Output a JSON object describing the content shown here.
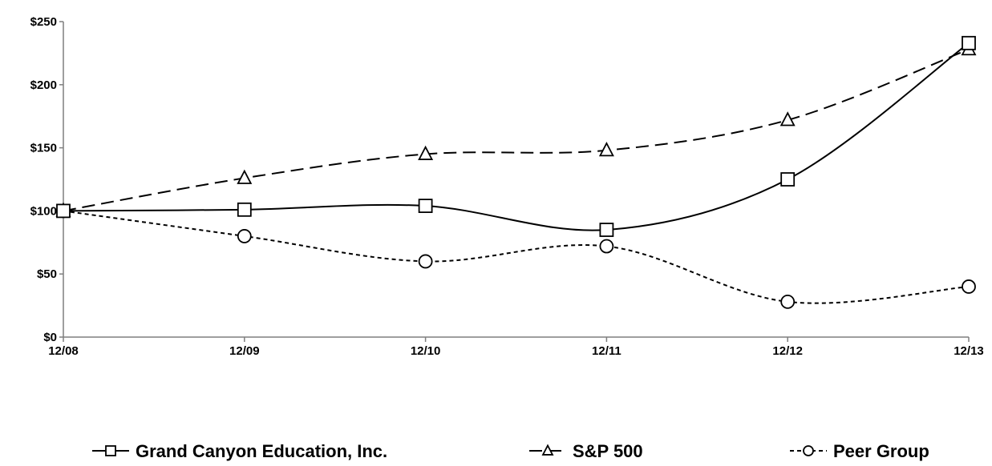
{
  "chart_data": {
    "type": "line",
    "title": "",
    "xlabel": "",
    "ylabel": "",
    "categories": [
      "12/08",
      "12/09",
      "12/10",
      "12/11",
      "12/12",
      "12/13"
    ],
    "y_ticks": [
      "$0",
      "$50",
      "$100",
      "$150",
      "$200",
      "$250"
    ],
    "y_tick_values": [
      0,
      50,
      100,
      150,
      200,
      250
    ],
    "ylim": [
      0,
      250
    ],
    "grid": false,
    "legend_position": "bottom",
    "series": [
      {
        "name": "Grand Canyon Education, Inc.",
        "values": [
          100,
          101,
          104,
          85,
          125,
          233
        ],
        "dash": "solid",
        "marker": "square"
      },
      {
        "name": "S&P 500",
        "values": [
          100,
          126,
          145,
          148,
          172,
          228
        ],
        "dash": "dashed",
        "marker": "triangle"
      },
      {
        "name": "Peer Group",
        "values": [
          100,
          80,
          60,
          72,
          28,
          40
        ],
        "dash": "dotted",
        "marker": "circle"
      }
    ]
  }
}
